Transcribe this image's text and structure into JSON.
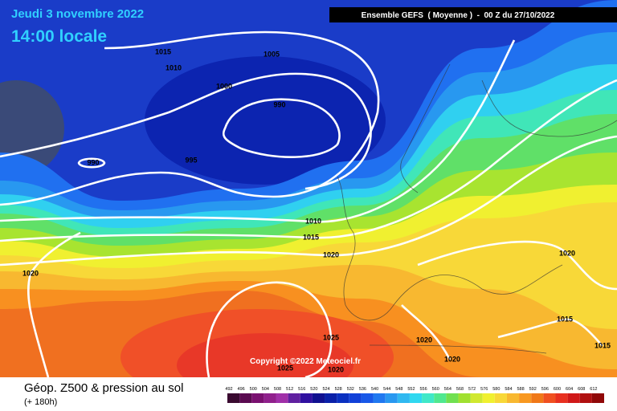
{
  "header": {
    "date": "Jeudi 3 novembre 2022",
    "time": "14:00 locale",
    "model": "Ensemble GEFS  ( Moyenne )  -  00 Z du 27/10/2022"
  },
  "isobar_labels": [
    "1015",
    "1005",
    "1010",
    "1000",
    "990",
    "990",
    "995",
    "1010",
    "1015",
    "1020",
    "1020",
    "1020",
    "1015",
    "1015",
    "1025",
    "1020",
    "1020",
    "1025",
    "1020"
  ],
  "copyright": "Copyright ©2022 Meteociel.fr",
  "footer": {
    "title": "Géop. Z500 & pression au sol",
    "subtitle": "(+ 180h)"
  },
  "scale": {
    "labels": [
      492,
      496,
      500,
      504,
      508,
      512,
      516,
      520,
      524,
      528,
      532,
      536,
      540,
      544,
      548,
      552,
      556,
      560,
      564,
      568,
      572,
      576,
      580,
      584,
      588,
      592,
      596,
      600,
      604,
      608,
      612
    ],
    "colors": [
      "#3a0a30",
      "#5a0a50",
      "#7a1070",
      "#90208c",
      "#a030a8",
      "#6020a0",
      "#3010a0",
      "#101090",
      "#0a20a8",
      "#0a30c0",
      "#1040d8",
      "#1858e8",
      "#2078f0",
      "#2898f0",
      "#30b8f0",
      "#30d8f0",
      "#40e8c8",
      "#50e890",
      "#70e050",
      "#a0e030",
      "#d0e830",
      "#f0f030",
      "#f8d838",
      "#f8b830",
      "#f89820",
      "#f07818",
      "#f05020",
      "#e83020",
      "#d01818",
      "#b01010",
      "#900808"
    ]
  }
}
